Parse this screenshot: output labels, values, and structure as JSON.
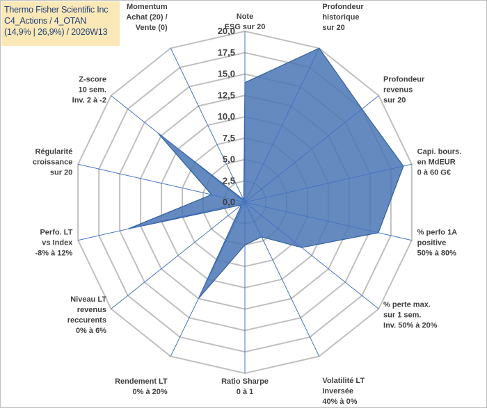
{
  "title": {
    "line1": "Thermo Fisher Scientific Inc",
    "line2": "C4_Actions / 4_OTAN",
    "line3": "(14,9% | 26,9%) / 2026W13"
  },
  "colors": {
    "series_fill": "#4a76b5",
    "series_stroke": "#2e5f9c",
    "grid": "#bfbfbf",
    "axis": "#4472c4",
    "text": "#404040",
    "title_bg": "#fbe8b7",
    "title_text": "#1f3f7a"
  },
  "chart_data": {
    "type": "radar",
    "rmin": 0,
    "rmax": 20,
    "tick_step": 2.5,
    "tick_labels": [
      "0,0",
      "2,5",
      "5,0",
      "7,5",
      "10,0",
      "12,5",
      "15,0",
      "17,5",
      "20,0"
    ],
    "axes": [
      [
        "Note",
        "ESG sur 20"
      ],
      [
        "Profondeur",
        "historique",
        "sur 20"
      ],
      [
        "Profondeur",
        "revenus",
        "sur 20"
      ],
      [
        "Capi. bours.",
        "en MdEUR",
        "0 à 60 G€"
      ],
      [
        "% perfo 1A",
        "positive",
        "50% à 80%"
      ],
      [
        "% perte max.",
        "sur 1 sem.",
        "Inv. 50% à 20%"
      ],
      [
        "Volatilité LT",
        "Inversée",
        "40% à 0%"
      ],
      [
        "Ratio Sharpe",
        "0 à 1"
      ],
      [
        "Rendement LT",
        "0% à 20%"
      ],
      [
        "Niveau LT",
        "revenus",
        "reccurents",
        "0% à 6%"
      ],
      [
        "Perfo. LT",
        "vs Index",
        "-8% à 12%"
      ],
      [
        "Régularité",
        "croissance",
        "sur 20"
      ],
      [
        "Z-score",
        "10 sem.",
        "Inv. 2 à -2"
      ],
      [
        "Momentum",
        "Achat (20) /",
        "Vente (0)"
      ]
    ],
    "series": [
      {
        "name": "Thermo Fisher Scientific Inc",
        "values": [
          14,
          20,
          17.5,
          19,
          16,
          8.5,
          4.5,
          5,
          12.5,
          0.5,
          14,
          4,
          13,
          0.3
        ]
      }
    ]
  }
}
